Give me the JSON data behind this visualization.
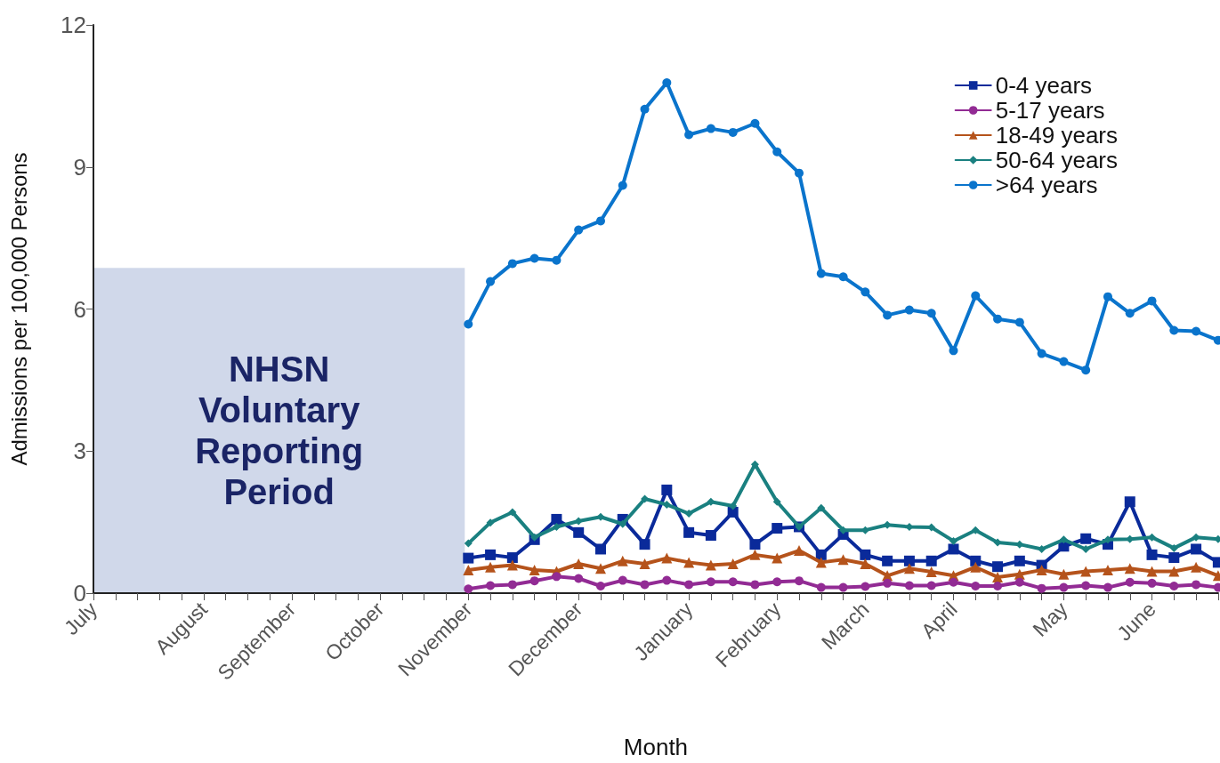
{
  "chart_data": {
    "type": "line",
    "xlabel": "Month",
    "ylabel": "Admissions per 100,000 Persons",
    "categories": [
      "July",
      null,
      null,
      null,
      null,
      "August",
      null,
      null,
      null,
      "September",
      null,
      null,
      null,
      "October",
      null,
      null,
      null,
      "November",
      null,
      null,
      null,
      null,
      "December",
      null,
      null,
      null,
      null,
      "January",
      null,
      null,
      null,
      "February",
      null,
      null,
      null,
      "March",
      null,
      null,
      null,
      "April",
      null,
      null,
      null,
      null,
      "May",
      null,
      null,
      null,
      "June",
      null,
      null,
      null
    ],
    "series": [
      {
        "name": "0-4 years",
        "color": "#0a2a9a",
        "marker": "square",
        "values": [
          null,
          null,
          null,
          null,
          null,
          null,
          null,
          null,
          null,
          null,
          null,
          null,
          null,
          null,
          null,
          null,
          null,
          0.74,
          0.81,
          0.75,
          1.13,
          1.56,
          1.28,
          0.93,
          1.56,
          1.03,
          2.18,
          1.28,
          1.22,
          1.71,
          1.03,
          1.37,
          1.4,
          0.81,
          1.24,
          0.81,
          0.68,
          0.68,
          0.68,
          0.93,
          0.68,
          0.56,
          0.68,
          0.59,
          0.99,
          1.15,
          1.03,
          1.93,
          0.81,
          0.75,
          0.93,
          0.65
        ]
      },
      {
        "name": "5-17 years",
        "color": "#922b94",
        "marker": "circle",
        "values": [
          null,
          null,
          null,
          null,
          null,
          null,
          null,
          null,
          null,
          null,
          null,
          null,
          null,
          null,
          null,
          null,
          null,
          0.09,
          0.16,
          0.18,
          0.26,
          0.35,
          0.31,
          0.15,
          0.27,
          0.18,
          0.27,
          0.18,
          0.24,
          0.24,
          0.18,
          0.24,
          0.26,
          0.12,
          0.12,
          0.14,
          0.21,
          0.16,
          0.16,
          0.23,
          0.15,
          0.15,
          0.23,
          0.1,
          0.12,
          0.16,
          0.12,
          0.23,
          0.21,
          0.15,
          0.18,
          0.12
        ]
      },
      {
        "name": "18-49 years",
        "color": "#b5531b",
        "marker": "triangle",
        "values": [
          null,
          null,
          null,
          null,
          null,
          null,
          null,
          null,
          null,
          null,
          null,
          null,
          null,
          null,
          null,
          null,
          null,
          0.49,
          0.55,
          0.59,
          0.49,
          0.46,
          0.62,
          0.52,
          0.68,
          0.62,
          0.74,
          0.65,
          0.59,
          0.62,
          0.81,
          0.74,
          0.9,
          0.65,
          0.71,
          0.62,
          0.37,
          0.52,
          0.45,
          0.37,
          0.55,
          0.34,
          0.4,
          0.49,
          0.4,
          0.46,
          0.49,
          0.52,
          0.46,
          0.46,
          0.55,
          0.37
        ]
      },
      {
        "name": "50-64 years",
        "color": "#1a8080",
        "marker": "diamond",
        "values": [
          null,
          null,
          null,
          null,
          null,
          null,
          null,
          null,
          null,
          null,
          null,
          null,
          null,
          null,
          null,
          null,
          null,
          1.05,
          1.49,
          1.71,
          1.18,
          1.4,
          1.52,
          1.61,
          1.46,
          1.99,
          1.87,
          1.68,
          1.93,
          1.84,
          2.72,
          1.93,
          1.4,
          1.8,
          1.33,
          1.33,
          1.44,
          1.4,
          1.39,
          1.1,
          1.33,
          1.07,
          1.03,
          0.93,
          1.13,
          0.93,
          1.13,
          1.14,
          1.18,
          0.95,
          1.18,
          1.14
        ]
      },
      {
        "name": ">64 years",
        "color": "#0a74cc",
        "marker": "circle",
        "values": [
          null,
          null,
          null,
          null,
          null,
          null,
          null,
          null,
          null,
          null,
          null,
          null,
          null,
          null,
          null,
          null,
          null,
          5.68,
          6.58,
          6.96,
          7.07,
          7.03,
          7.67,
          7.86,
          8.61,
          10.22,
          10.78,
          9.68,
          9.81,
          9.73,
          9.92,
          9.32,
          8.87,
          6.75,
          6.68,
          6.36,
          5.87,
          5.98,
          5.91,
          5.12,
          6.28,
          5.79,
          5.72,
          5.06,
          4.89,
          4.71,
          6.26,
          5.91,
          6.17,
          5.55,
          5.53,
          5.34
        ]
      }
    ],
    "ylim": [
      0,
      12
    ],
    "yticks": [
      0,
      3,
      6,
      9,
      12
    ],
    "grid": false,
    "legend": "top right",
    "line_style": "solid",
    "bands": [
      {
        "axis": "x",
        "from": "July",
        "to": "November",
        "label": "NHSN\nVoluntary\nReporting\nPeriod",
        "color": "#d0d8ea"
      }
    ]
  }
}
